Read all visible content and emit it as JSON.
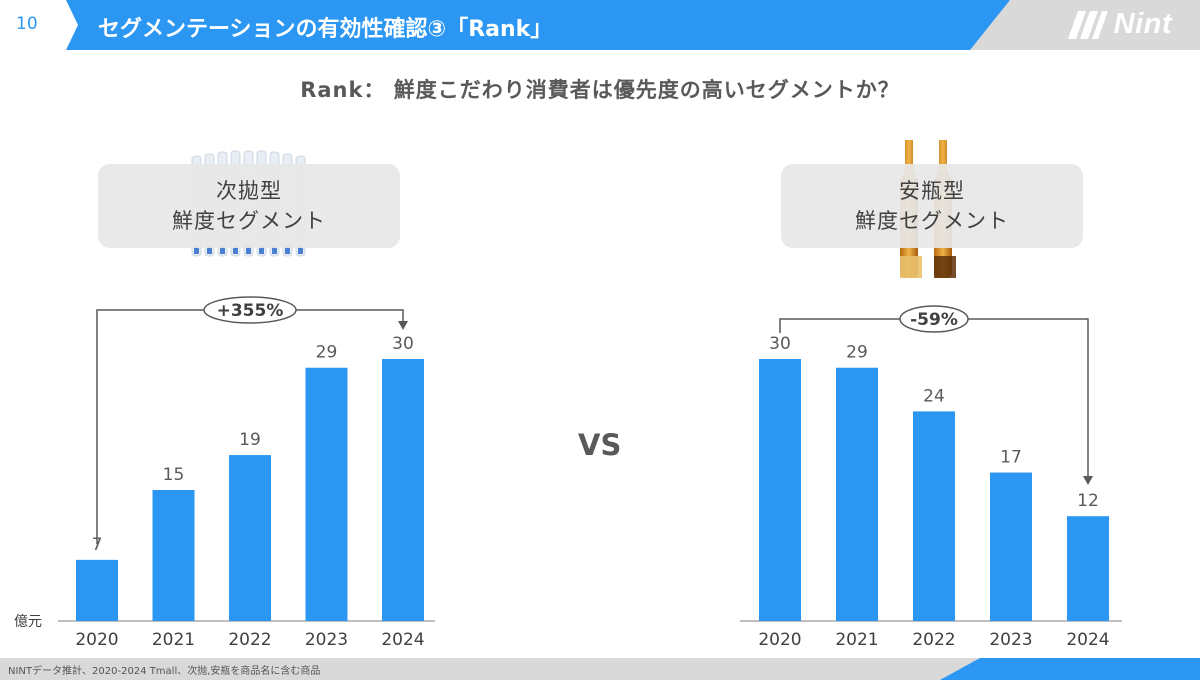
{
  "header": {
    "page_number": "10",
    "title": "セグメンテーションの有効性確認③「Rank」",
    "logo_text": "Nint"
  },
  "subtitle": "Rank： 鮮度こだわり消費者は優先度の高いセグメントか？",
  "vs_label": "VS",
  "segments": {
    "left": {
      "line1": "次拋型",
      "line2": "鮮度セグメント",
      "image_icon": "vial-tubes-image"
    },
    "right": {
      "line1": "安瓶型",
      "line2": "鮮度セグメント",
      "image_icon": "ampoule-bottles-image"
    }
  },
  "footer_note": "NINTデータ推計、2020-2024 Tmall、次抛,安瓶を商品名に含む商品",
  "colors": {
    "accent": "#2b97f3",
    "bar": "#2b97f3",
    "header_gray": "#d9d9d9"
  },
  "chart_data": [
    {
      "type": "bar",
      "categories": [
        "2020",
        "2021",
        "2022",
        "2023",
        "2024"
      ],
      "values": [
        7,
        15,
        19,
        29,
        30
      ],
      "ylabel": "億元",
      "ylim": [
        0,
        30
      ],
      "growth_label": "+355%",
      "grid": false
    },
    {
      "type": "bar",
      "categories": [
        "2020",
        "2021",
        "2022",
        "2023",
        "2024"
      ],
      "values": [
        30,
        29,
        24,
        17,
        12
      ],
      "ylabel": "",
      "ylim": [
        0,
        30
      ],
      "growth_label": "-59%",
      "grid": false
    }
  ]
}
